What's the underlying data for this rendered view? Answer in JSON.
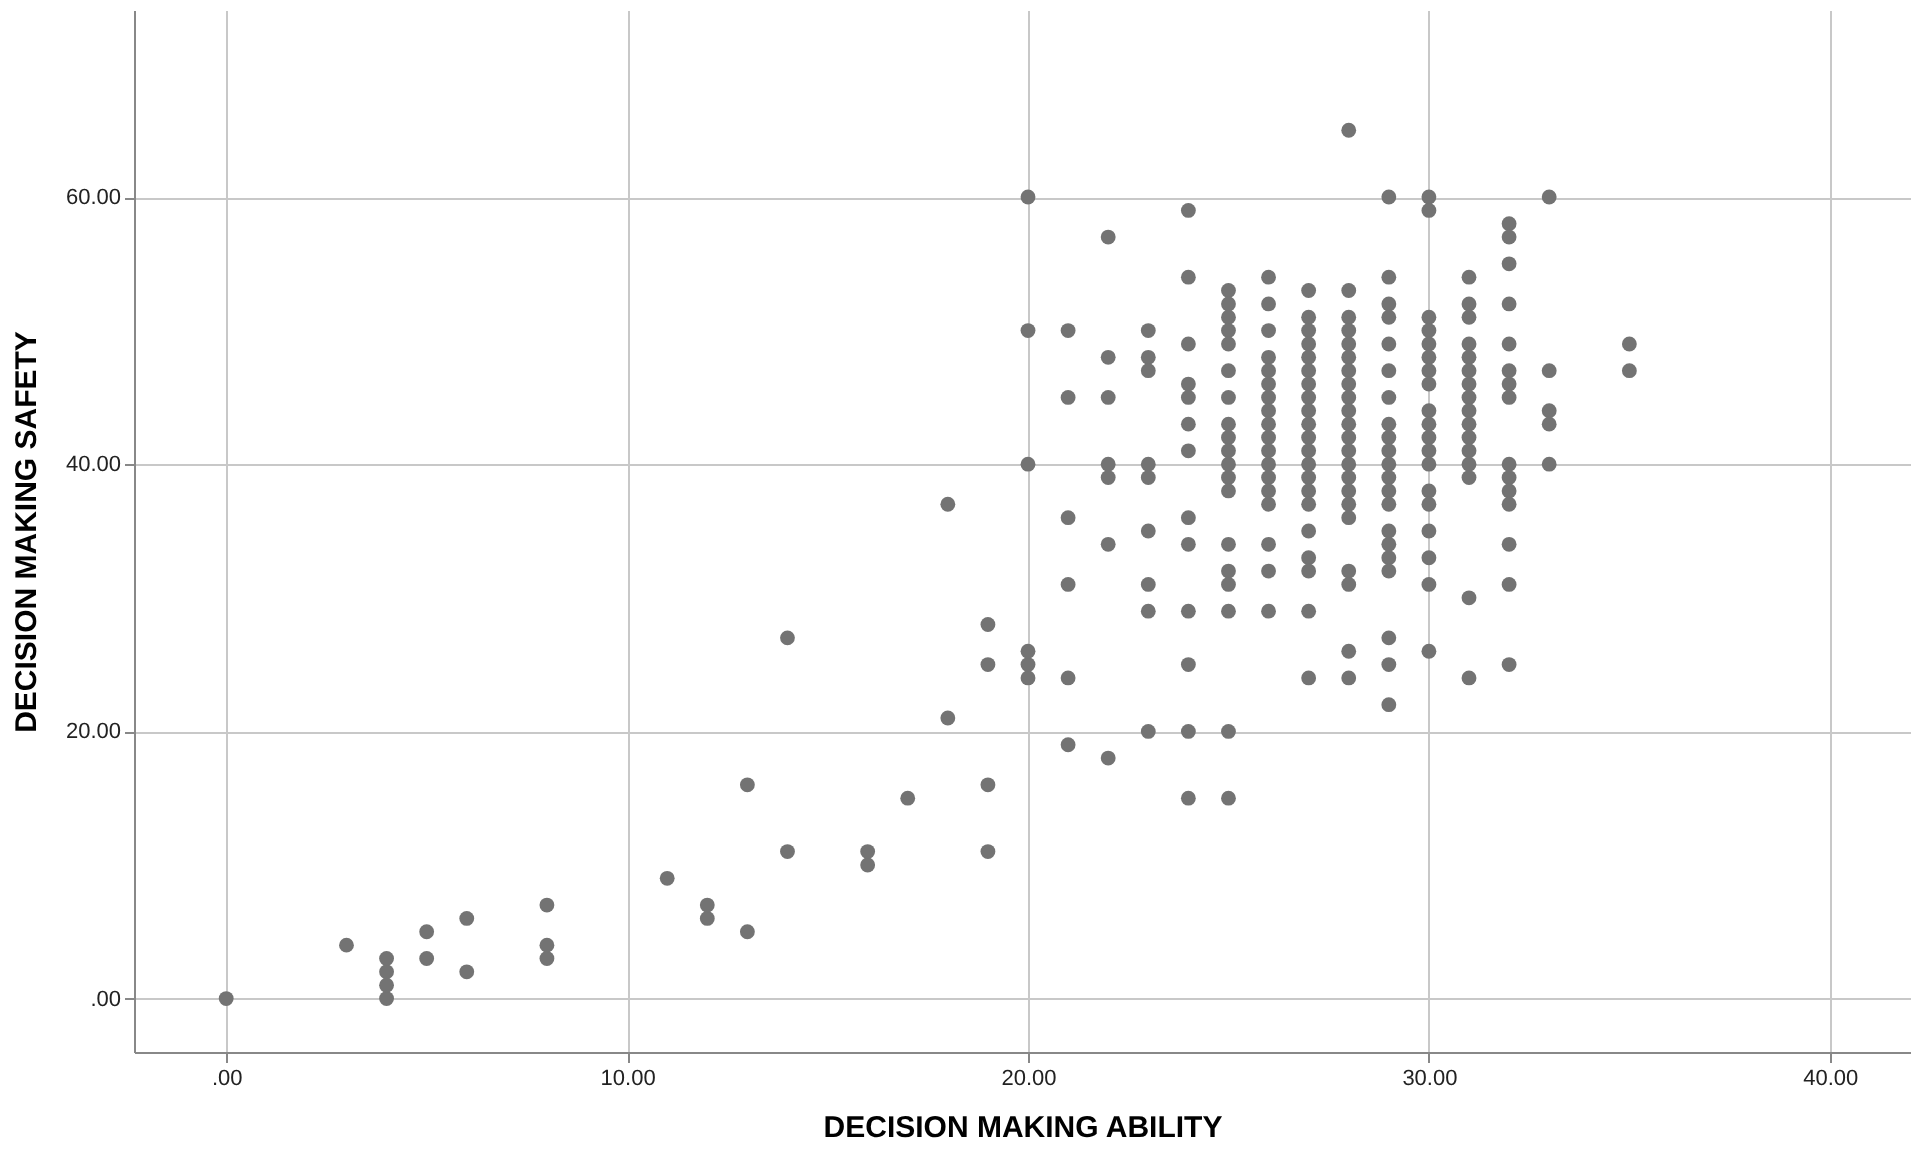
{
  "chart_data": {
    "type": "scatter",
    "xlabel": "DECISION MAKING ABILITY",
    "ylabel": "DECISION MAKING SAFETY",
    "xlim": [
      -2.3,
      42
    ],
    "ylim": [
      -4,
      74
    ],
    "xticks": [
      {
        "value": 0,
        "label": ".00"
      },
      {
        "value": 10,
        "label": "10.00"
      },
      {
        "value": 20,
        "label": "20.00"
      },
      {
        "value": 30,
        "label": "30.00"
      },
      {
        "value": 40,
        "label": "40.00"
      }
    ],
    "yticks": [
      {
        "value": 0,
        "label": ".00"
      },
      {
        "value": 20,
        "label": "20.00"
      },
      {
        "value": 40,
        "label": "40.00"
      },
      {
        "value": 60,
        "label": "60.00"
      }
    ],
    "grid": true,
    "marker": "circle",
    "legend": false,
    "series": [
      {
        "color": "#737373",
        "x": [
          0,
          3,
          4,
          4,
          4,
          4,
          5,
          5,
          6,
          6,
          8,
          8,
          8,
          11,
          12,
          12,
          13,
          13,
          14,
          14,
          16,
          16,
          17,
          18,
          18,
          19,
          19,
          19,
          19,
          20,
          20,
          20,
          20,
          20,
          20,
          21,
          21,
          21,
          21,
          21,
          21,
          22,
          22,
          22,
          22,
          22,
          22,
          22,
          23,
          23,
          23,
          23,
          23,
          23,
          23,
          23,
          23,
          24,
          24,
          24,
          24,
          24,
          24,
          24,
          24,
          24,
          24,
          24,
          24,
          24,
          25,
          25,
          25,
          25,
          25,
          25,
          25,
          25,
          25,
          25,
          25,
          25,
          25,
          25,
          25,
          25,
          25,
          25,
          25,
          26,
          26,
          26,
          26,
          26,
          26,
          26,
          26,
          26,
          26,
          26,
          26,
          26,
          26,
          26,
          26,
          26,
          26,
          27,
          27,
          27,
          27,
          27,
          27,
          27,
          27,
          27,
          27,
          27,
          27,
          27,
          27,
          27,
          27,
          27,
          27,
          27,
          27,
          27,
          28,
          28,
          28,
          28,
          28,
          28,
          28,
          28,
          28,
          28,
          28,
          28,
          28,
          28,
          28,
          28,
          28,
          28,
          28,
          28,
          28,
          28,
          29,
          29,
          29,
          29,
          29,
          29,
          29,
          29,
          29,
          29,
          29,
          29,
          29,
          29,
          29,
          29,
          29,
          29,
          29,
          29,
          29,
          30,
          30,
          30,
          30,
          30,
          30,
          30,
          30,
          30,
          30,
          30,
          30,
          30,
          30,
          30,
          30,
          30,
          30,
          30,
          31,
          31,
          31,
          31,
          31,
          31,
          31,
          31,
          31,
          31,
          31,
          31,
          31,
          31,
          31,
          31,
          32,
          32,
          32,
          32,
          32,
          32,
          32,
          32,
          32,
          32,
          32,
          32,
          32,
          32,
          32,
          33,
          33,
          33,
          33,
          33,
          35,
          35
        ],
        "values": [
          0,
          4,
          0,
          1,
          2,
          3,
          3,
          5,
          2,
          6,
          3,
          4,
          7,
          9,
          6,
          7,
          5,
          16,
          11,
          27,
          10,
          11,
          15,
          21,
          37,
          11,
          16,
          25,
          28,
          24,
          25,
          26,
          40,
          50,
          60,
          50,
          45,
          36,
          31,
          24,
          19,
          57,
          48,
          45,
          40,
          39,
          34,
          18,
          50,
          48,
          47,
          40,
          39,
          35,
          31,
          29,
          20,
          59,
          54,
          49,
          46,
          45,
          43,
          41,
          36,
          34,
          29,
          25,
          20,
          15,
          53,
          52,
          51,
          50,
          49,
          47,
          45,
          43,
          42,
          41,
          40,
          39,
          38,
          34,
          32,
          31,
          29,
          20,
          15,
          54,
          52,
          50,
          48,
          47,
          46,
          45,
          44,
          43,
          42,
          41,
          40,
          39,
          38,
          37,
          34,
          32,
          29,
          53,
          51,
          50,
          49,
          48,
          47,
          46,
          45,
          44,
          43,
          42,
          41,
          40,
          39,
          38,
          37,
          35,
          33,
          32,
          29,
          24,
          65,
          53,
          51,
          50,
          49,
          48,
          47,
          46,
          45,
          44,
          43,
          42,
          41,
          40,
          39,
          38,
          37,
          36,
          32,
          31,
          26,
          24,
          60,
          54,
          52,
          51,
          49,
          47,
          45,
          43,
          42,
          41,
          40,
          39,
          38,
          37,
          35,
          34,
          33,
          32,
          27,
          25,
          22,
          60,
          59,
          51,
          50,
          49,
          48,
          47,
          46,
          44,
          43,
          42,
          41,
          40,
          38,
          37,
          35,
          33,
          31,
          26,
          54,
          52,
          51,
          49,
          48,
          47,
          46,
          45,
          44,
          43,
          42,
          41,
          40,
          39,
          30,
          24,
          58,
          57,
          55,
          52,
          49,
          47,
          46,
          45,
          40,
          39,
          38,
          37,
          34,
          31,
          25,
          60,
          47,
          44,
          43,
          40,
          49,
          47
        ]
      }
    ]
  }
}
